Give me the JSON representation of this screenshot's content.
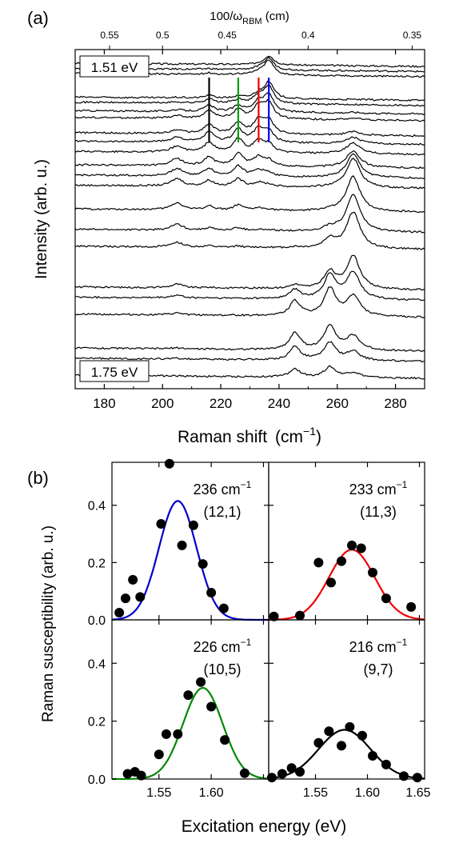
{
  "chart_data": [
    {
      "panel_label": "(a)",
      "type": "line",
      "xlabel": "Raman shift",
      "xlabel_unit": "(cm",
      "xlabel_unit_sup": "−1",
      "xlabel_close": ")",
      "ylabel": "Intensity (arb. u.)",
      "xlim": [
        170,
        290
      ],
      "x_ticks": [
        180,
        200,
        220,
        240,
        260,
        280
      ],
      "x_ticks_labels": [
        "180",
        "200",
        "220",
        "240",
        "260",
        "280"
      ],
      "top_axis_label": "100/ω",
      "top_axis_label_sub": "RBM",
      "top_axis_label_unit": " (cm)",
      "top_ticks": [
        0.55,
        0.5,
        0.45,
        0.4,
        0.35
      ],
      "top_ticks_labels": [
        "0.55",
        "0.5",
        "0.45",
        "0.4",
        "0.35"
      ],
      "annotation_top": "1.51 eV",
      "annotation_bottom": "1.75 eV",
      "marker_lines": [
        {
          "x": 216,
          "color": "#000000"
        },
        {
          "x": 226,
          "color": "#00a000"
        },
        {
          "x": 233,
          "color": "#ee0000"
        },
        {
          "x": 236.5,
          "color": "#0000ee"
        }
      ],
      "peak_positions": [
        205,
        216,
        226,
        233,
        236,
        245,
        257,
        265
      ],
      "spectra_count": 22,
      "spectra_offsets_top_to_bottom": [
        0.96,
        0.945,
        0.93,
        0.86,
        0.845,
        0.82,
        0.8,
        0.755,
        0.73,
        0.7,
        0.66,
        0.63,
        0.6,
        0.53,
        0.47,
        0.42,
        0.3,
        0.27,
        0.22,
        0.12,
        0.09,
        0.04
      ]
    },
    {
      "panel_label": "(b)",
      "type": "scatter",
      "ylabel": "Raman susceptibility (arb. u.)",
      "xlabel": "Excitation energy (eV)",
      "xlim": [
        1.505,
        1.655
      ],
      "ylim": [
        0,
        0.55
      ],
      "x_ticks": [
        1.55,
        1.6
      ],
      "x_ticks_labels": [
        "1.55",
        "1.60"
      ],
      "x_ticks_right": [
        1.55,
        1.6,
        1.65
      ],
      "x_ticks_right_labels": [
        "1.55",
        "1.60",
        "1.65"
      ],
      "y_ticks": [
        0,
        0.2,
        0.4
      ],
      "y_ticks_labels": [
        "0.0",
        "0.2",
        "0.4"
      ],
      "panels": [
        {
          "freq": "236 cm",
          "freq_sup": "−1",
          "chirality": "(12,1)",
          "fit_color": "#0000cc",
          "fit": {
            "amp": 0.415,
            "center": 1.568,
            "width": 0.018
          },
          "points": [
            [
              1.512,
              0.025
            ],
            [
              1.518,
              0.075
            ],
            [
              1.525,
              0.14
            ],
            [
              1.532,
              0.08
            ],
            [
              1.552,
              0.335
            ],
            [
              1.56,
              0.545
            ],
            [
              1.572,
              0.26
            ],
            [
              1.583,
              0.33
            ],
            [
              1.592,
              0.195
            ],
            [
              1.6,
              0.095
            ],
            [
              1.612,
              0.04
            ]
          ]
        },
        {
          "freq": "233 cm",
          "freq_sup": "−1",
          "chirality": "(11,3)",
          "fit_color": "#ee0000",
          "fit": {
            "amp": 0.245,
            "center": 1.585,
            "width": 0.022
          },
          "points": [
            [
              1.51,
              0.012
            ],
            [
              1.535,
              0.015
            ],
            [
              1.553,
              0.2
            ],
            [
              1.565,
              0.13
            ],
            [
              1.575,
              0.205
            ],
            [
              1.585,
              0.26
            ],
            [
              1.594,
              0.25
            ],
            [
              1.605,
              0.165
            ],
            [
              1.618,
              0.075
            ],
            [
              1.642,
              0.045
            ]
          ]
        },
        {
          "freq": "226 cm",
          "freq_sup": "−1",
          "chirality": "(10,5)",
          "fit_color": "#008800",
          "fit": {
            "amp": 0.315,
            "center": 1.592,
            "width": 0.019
          },
          "points": [
            [
              1.52,
              0.018
            ],
            [
              1.527,
              0.025
            ],
            [
              1.533,
              0.012
            ],
            [
              1.55,
              0.085
            ],
            [
              1.557,
              0.155
            ],
            [
              1.568,
              0.155
            ],
            [
              1.578,
              0.29
            ],
            [
              1.59,
              0.335
            ],
            [
              1.6,
              0.25
            ],
            [
              1.613,
              0.135
            ],
            [
              1.632,
              0.02
            ]
          ]
        },
        {
          "freq": "216 cm",
          "freq_sup": "−1",
          "chirality": "(9,7)",
          "fit_color": "#000000",
          "fit": {
            "amp": 0.17,
            "center": 1.578,
            "width": 0.025
          },
          "points": [
            [
              1.508,
              0.005
            ],
            [
              1.518,
              0.018
            ],
            [
              1.527,
              0.038
            ],
            [
              1.535,
              0.025
            ],
            [
              1.553,
              0.125
            ],
            [
              1.563,
              0.165
            ],
            [
              1.575,
              0.115
            ],
            [
              1.583,
              0.18
            ],
            [
              1.595,
              0.15
            ],
            [
              1.605,
              0.08
            ],
            [
              1.618,
              0.05
            ],
            [
              1.635,
              0.01
            ],
            [
              1.648,
              0.005
            ]
          ]
        }
      ]
    }
  ]
}
